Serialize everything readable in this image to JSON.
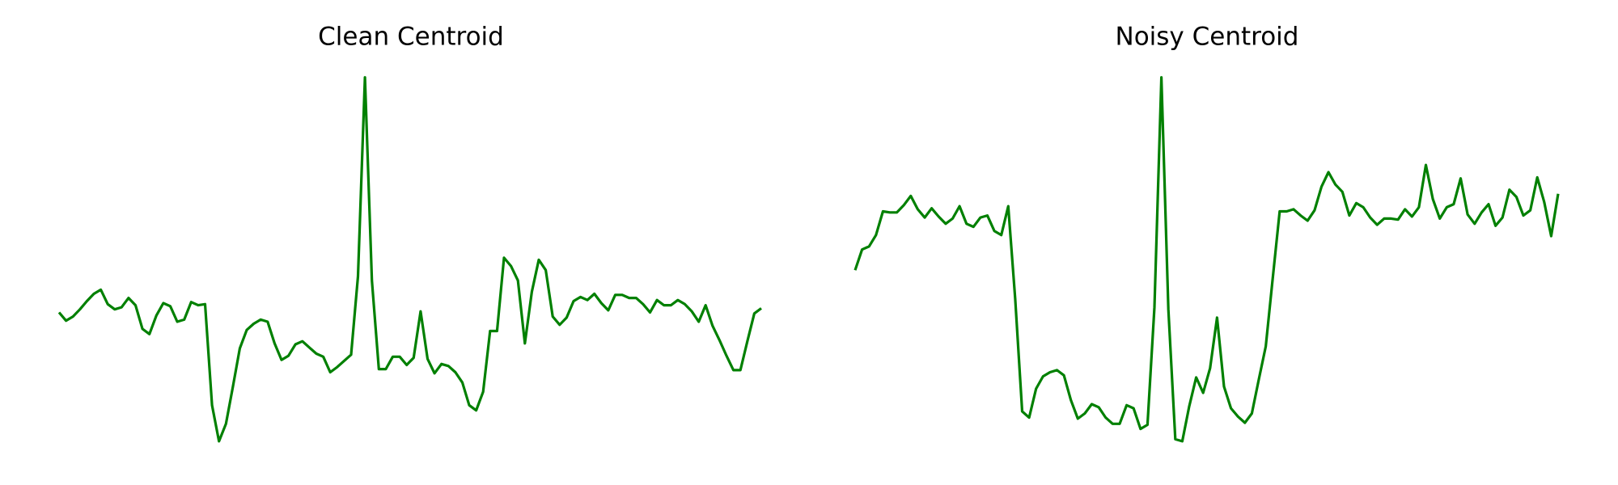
{
  "chart_data": [
    {
      "type": "line",
      "title": "Clean Centroid",
      "color": "#008000",
      "ylim": [
        0,
        450
      ],
      "values": [
        147,
        139,
        143,
        150,
        158,
        165,
        169,
        155,
        150,
        152,
        161,
        154,
        131,
        126,
        144,
        156,
        153,
        138,
        140,
        157,
        154,
        155,
        57,
        22,
        39,
        75,
        112,
        130,
        136,
        140,
        138,
        117,
        101,
        105,
        116,
        119,
        113,
        107,
        104,
        89,
        94,
        100,
        106,
        182,
        375,
        178,
        92,
        92,
        104,
        104,
        96,
        103,
        148,
        102,
        88,
        97,
        95,
        89,
        79,
        57,
        52,
        70,
        129,
        129,
        200,
        192,
        178,
        117,
        167,
        198,
        188,
        143,
        135,
        142,
        158,
        162,
        159,
        165,
        156,
        149,
        164,
        164,
        161,
        161,
        155,
        147,
        159,
        154,
        154,
        159,
        155,
        148,
        138,
        154,
        134,
        120,
        105,
        91,
        91,
        119,
        146,
        151
      ]
    },
    {
      "type": "line",
      "title": "Noisy Centroid",
      "color": "#008000",
      "ylim": [
        0,
        450
      ],
      "values": [
        188,
        208,
        211,
        222,
        245,
        244,
        244,
        251,
        260,
        247,
        239,
        248,
        240,
        233,
        238,
        250,
        233,
        230,
        239,
        241,
        226,
        222,
        250,
        160,
        51,
        45,
        73,
        85,
        89,
        91,
        86,
        62,
        44,
        49,
        58,
        55,
        45,
        39,
        39,
        57,
        54,
        34,
        38,
        152,
        375,
        150,
        24,
        22,
        56,
        84,
        69,
        93,
        142,
        75,
        54,
        46,
        40,
        49,
        82,
        114,
        180,
        245,
        245,
        247,
        241,
        236,
        246,
        269,
        283,
        271,
        264,
        241,
        253,
        249,
        239,
        232,
        238,
        238,
        237,
        247,
        240,
        249,
        290,
        257,
        238,
        249,
        252,
        277,
        242,
        233,
        244,
        252,
        231,
        239,
        266,
        259,
        241,
        246,
        278,
        254,
        221,
        262
      ]
    }
  ]
}
